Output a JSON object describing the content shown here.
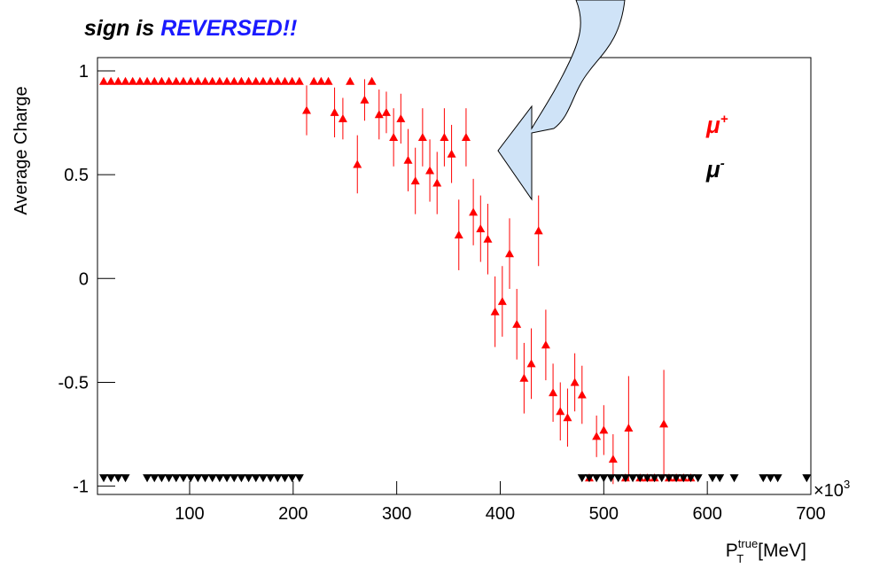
{
  "chart_data": {
    "type": "scatter",
    "title_parts": [
      "sign is",
      "REVERSED!!"
    ],
    "ylabel": "Average Charge",
    "xlabel": {
      "base": "P",
      "superscript": "true",
      "subscript": "T",
      "unit": "[MeV]"
    },
    "x_multiplier": {
      "base": "×10",
      "exponent": "3"
    },
    "xlim": [
      11,
      700
    ],
    "ylim": [
      -1.04,
      1.064
    ],
    "xticks": [
      100,
      200,
      300,
      400,
      500,
      600,
      700
    ],
    "yticks": [
      -1,
      -0.5,
      0,
      0.5,
      1
    ],
    "series": [
      {
        "name": "μ",
        "superscript": "+",
        "color": "#ff0000",
        "marker": "triangle-up",
        "x": [
          17,
          24,
          31,
          38,
          45,
          52,
          59,
          66,
          73,
          80,
          87,
          94,
          101,
          108,
          115,
          122,
          129,
          136,
          143,
          150,
          157,
          164,
          171,
          178,
          185,
          192,
          199,
          206,
          213,
          220,
          227,
          234,
          240,
          248,
          255,
          262,
          269,
          276,
          283,
          290,
          297,
          304,
          311,
          318,
          325,
          332,
          339,
          346,
          353,
          360,
          367,
          374,
          381,
          388,
          395,
          402,
          409,
          416,
          423,
          430,
          437,
          444,
          451,
          458,
          465,
          472,
          479,
          486,
          493,
          500,
          509,
          521,
          524,
          535,
          542,
          549,
          558,
          563,
          570,
          577,
          584
        ],
        "values": [
          0.95,
          0.95,
          0.95,
          0.95,
          0.95,
          0.95,
          0.95,
          0.95,
          0.95,
          0.95,
          0.95,
          0.95,
          0.95,
          0.95,
          0.95,
          0.95,
          0.95,
          0.95,
          0.95,
          0.95,
          0.95,
          0.95,
          0.95,
          0.95,
          0.95,
          0.95,
          0.95,
          0.95,
          0.81,
          0.95,
          0.95,
          0.95,
          0.8,
          0.77,
          0.95,
          0.55,
          0.86,
          0.95,
          0.79,
          0.8,
          0.68,
          0.77,
          0.57,
          0.47,
          0.68,
          0.52,
          0.46,
          0.68,
          0.6,
          0.21,
          0.68,
          0.32,
          0.24,
          0.19,
          -0.16,
          -0.11,
          0.12,
          -0.22,
          -0.48,
          -0.41,
          0.23,
          -0.32,
          -0.55,
          -0.64,
          -0.67,
          -0.5,
          -0.56,
          -0.96,
          -0.76,
          -0.73,
          -0.87,
          -0.96,
          -0.72,
          -0.96,
          -0.96,
          -0.96,
          -0.7,
          -0.96,
          -0.96,
          -0.96,
          -0.96
        ],
        "errors": [
          0,
          0,
          0,
          0,
          0,
          0,
          0,
          0,
          0,
          0,
          0,
          0,
          0,
          0,
          0,
          0,
          0,
          0,
          0,
          0,
          0,
          0,
          0,
          0,
          0,
          0,
          0,
          0,
          0.12,
          0,
          0,
          0,
          0.12,
          0.1,
          0,
          0.14,
          0.1,
          0,
          0.12,
          0.1,
          0.14,
          0.12,
          0.15,
          0.16,
          0.14,
          0.15,
          0.15,
          0.14,
          0.14,
          0.17,
          0.14,
          0.16,
          0.16,
          0.17,
          0.17,
          0.17,
          0.17,
          0.17,
          0.17,
          0.17,
          0.17,
          0.17,
          0.14,
          0.14,
          0.14,
          0.14,
          0.14,
          0,
          0.1,
          0.12,
          0.12,
          0,
          0.25,
          0,
          0,
          0,
          0.26,
          0,
          0,
          0,
          0
        ]
      },
      {
        "name": "μ",
        "superscript": "-",
        "color": "#000000",
        "marker": "triangle-down",
        "x": [
          17,
          24,
          31,
          38,
          59,
          66,
          73,
          80,
          87,
          94,
          101,
          108,
          115,
          122,
          129,
          136,
          143,
          150,
          157,
          164,
          171,
          178,
          185,
          192,
          199,
          206,
          479,
          486,
          493,
          500,
          507,
          514,
          521,
          528,
          535,
          542,
          549,
          556,
          563,
          570,
          577,
          584,
          591,
          605,
          612,
          626,
          654,
          661,
          668,
          696
        ],
        "values": [
          -0.96,
          -0.96,
          -0.96,
          -0.96,
          -0.96,
          -0.96,
          -0.96,
          -0.96,
          -0.96,
          -0.96,
          -0.96,
          -0.96,
          -0.96,
          -0.96,
          -0.96,
          -0.96,
          -0.96,
          -0.96,
          -0.96,
          -0.96,
          -0.96,
          -0.96,
          -0.96,
          -0.96,
          -0.96,
          -0.96,
          -0.96,
          -0.96,
          -0.96,
          -0.96,
          -0.96,
          -0.96,
          -0.96,
          -0.96,
          -0.96,
          -0.96,
          -0.96,
          -0.96,
          -0.96,
          -0.96,
          -0.96,
          -0.96,
          -0.96,
          -0.96,
          -0.96,
          -0.96,
          -0.96,
          -0.96,
          -0.96,
          -0.96
        ]
      }
    ]
  }
}
